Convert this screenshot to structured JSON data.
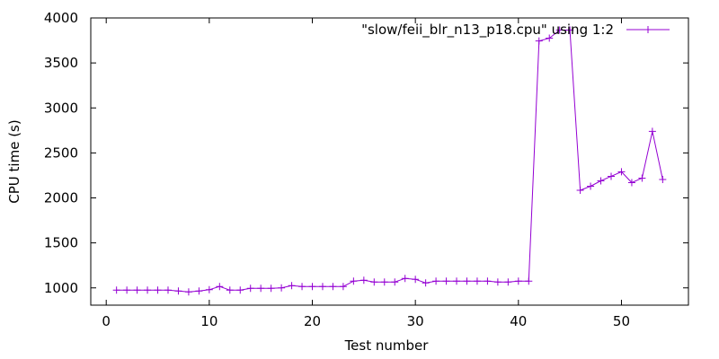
{
  "chart_data": {
    "type": "line",
    "xlabel": "Test number",
    "ylabel": "CPU time (s)",
    "xlim": [
      -1.5,
      56.5
    ],
    "ylim": [
      808,
      4000
    ],
    "xticks": [
      0,
      10,
      20,
      30,
      40,
      50
    ],
    "yticks": [
      1000,
      1500,
      2000,
      2500,
      3000,
      3500,
      4000
    ],
    "grid": false,
    "legend_position": "top-right",
    "series": [
      {
        "name": "\"slow/feii_blr_n13_p18.cpu\" using 1:2",
        "color": "#9400d3",
        "marker": "plus",
        "x": [
          1,
          2,
          3,
          4,
          5,
          6,
          7,
          8,
          9,
          10,
          11,
          12,
          13,
          14,
          15,
          16,
          17,
          18,
          19,
          20,
          21,
          22,
          23,
          24,
          25,
          26,
          27,
          28,
          29,
          30,
          31,
          32,
          33,
          34,
          35,
          36,
          37,
          38,
          39,
          40,
          41,
          42,
          43,
          44,
          45,
          46,
          47,
          48,
          49,
          50,
          51,
          52,
          53,
          54
        ],
        "y": [
          975,
          975,
          975,
          975,
          975,
          975,
          965,
          955,
          965,
          980,
          1015,
          975,
          975,
          995,
          995,
          995,
          1000,
          1025,
          1015,
          1015,
          1015,
          1015,
          1015,
          1075,
          1085,
          1065,
          1065,
          1065,
          1105,
          1095,
          1055,
          1075,
          1075,
          1075,
          1075,
          1075,
          1075,
          1065,
          1065,
          1075,
          1075,
          3745,
          3775,
          3865,
          3865,
          2085,
          2130,
          2190,
          2240,
          2290,
          2170,
          2220,
          2740,
          2205
        ]
      }
    ]
  }
}
